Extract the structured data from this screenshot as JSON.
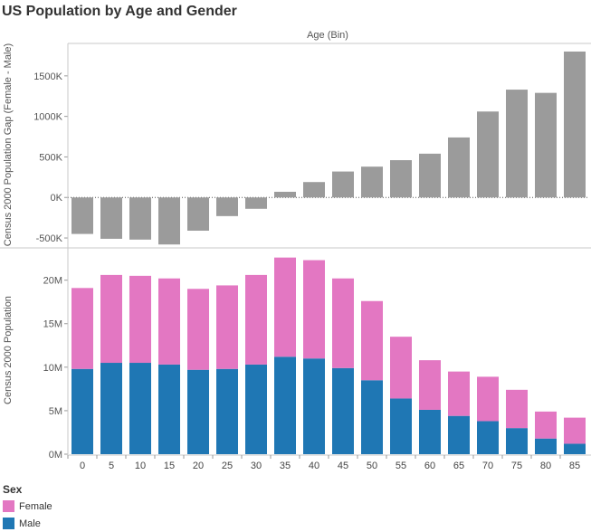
{
  "title": "US Population by Age and Gender",
  "colors": {
    "gap": "#9b9b9b",
    "female": "#e377c2",
    "male": "#1f77b4",
    "axis": "#555555",
    "divider": "#c8c8c8"
  },
  "chart_data": [
    {
      "type": "bar",
      "column_header": "Age (Bin)",
      "ylabel": "Census 2000 Population Gap (Female - Male)",
      "categories": [
        "0",
        "5",
        "10",
        "15",
        "20",
        "25",
        "30",
        "35",
        "40",
        "45",
        "50",
        "55",
        "60",
        "65",
        "70",
        "75",
        "80",
        "85"
      ],
      "values": [
        -450000,
        -510000,
        -520000,
        -580000,
        -410000,
        -230000,
        -140000,
        70000,
        190000,
        320000,
        380000,
        460000,
        540000,
        740000,
        1060000,
        1330000,
        1290000,
        1800000
      ],
      "ylim": [
        -600000,
        1900000
      ],
      "ticks": [
        {
          "value": -500000,
          "label": "-500K"
        },
        {
          "value": 0,
          "label": "0K"
        },
        {
          "value": 500000,
          "label": "500K"
        },
        {
          "value": 1000000,
          "label": "1000K"
        },
        {
          "value": 1500000,
          "label": "1500K"
        }
      ]
    },
    {
      "type": "bar",
      "stacked": true,
      "ylabel": "Census 2000 Population",
      "categories": [
        "0",
        "5",
        "10",
        "15",
        "20",
        "25",
        "30",
        "35",
        "40",
        "45",
        "50",
        "55",
        "60",
        "65",
        "70",
        "75",
        "80",
        "85"
      ],
      "series": [
        {
          "name": "Male",
          "values": [
            9800000,
            10500000,
            10500000,
            10300000,
            9700000,
            9800000,
            10300000,
            11200000,
            11000000,
            9900000,
            8500000,
            6400000,
            5100000,
            4400000,
            3800000,
            3000000,
            1800000,
            1200000
          ]
        },
        {
          "name": "Female",
          "values": [
            9300000,
            10100000,
            10000000,
            9900000,
            9300000,
            9600000,
            10300000,
            11400000,
            11300000,
            10300000,
            9100000,
            7100000,
            5700000,
            5100000,
            5100000,
            4400000,
            3100000,
            3000000
          ]
        }
      ],
      "ylim": [
        0,
        23500000
      ],
      "ticks": [
        {
          "value": 0,
          "label": "0M"
        },
        {
          "value": 5000000,
          "label": "5M"
        },
        {
          "value": 10000000,
          "label": "10M"
        },
        {
          "value": 15000000,
          "label": "15M"
        },
        {
          "value": 20000000,
          "label": "20M"
        }
      ]
    }
  ],
  "legend": {
    "title": "Sex",
    "items": [
      {
        "label": "Female",
        "color": "#e377c2"
      },
      {
        "label": "Male",
        "color": "#1f77b4"
      }
    ]
  }
}
